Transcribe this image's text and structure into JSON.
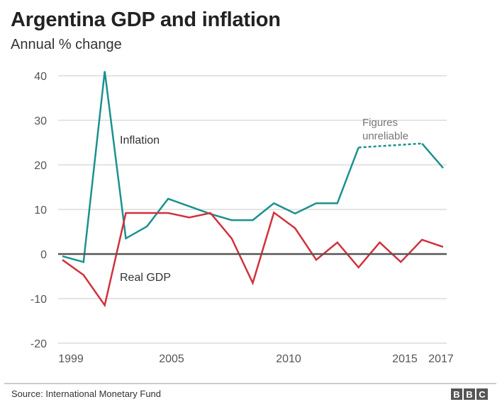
{
  "header": {
    "title": "Argentina GDP and inflation",
    "subtitle": "Annual % change"
  },
  "footer": {
    "source": "Source: International Monetary Fund",
    "logo_letters": [
      "B",
      "B",
      "C"
    ]
  },
  "chart_data": {
    "type": "line",
    "title": "Argentina GDP and inflation",
    "subtitle": "Annual % change",
    "xlabel": "",
    "ylabel": "",
    "x": [
      1999,
      2000,
      2001,
      2002,
      2003,
      2004,
      2005,
      2006,
      2007,
      2008,
      2009,
      2010,
      2011,
      2012,
      2013,
      2014,
      2015,
      2016,
      2017
    ],
    "x_tick_labels": [
      "1999",
      "2005",
      "2010",
      "2015",
      "2017"
    ],
    "x_ticks": [
      1999,
      2005,
      2010,
      2015,
      2017
    ],
    "ylim": [
      -20,
      40
    ],
    "y_ticks": [
      40,
      30,
      20,
      10,
      0,
      -10,
      -20
    ],
    "grid": true,
    "series": [
      {
        "name": "Inflation",
        "color": "#1b918f",
        "values": [
          -0.5,
          -1.8,
          41,
          3.5,
          6.2,
          12.4,
          10.7,
          9.0,
          7.6,
          7.6,
          11.4,
          9.1,
          11.4,
          11.4,
          23.9,
          24.2,
          24.5,
          24.8,
          19.3
        ],
        "dashed_from": 2013,
        "dashed_to": 2016
      },
      {
        "name": "Real GDP",
        "color": "#d1313c",
        "values": [
          -1.3,
          -4.7,
          -11.5,
          9.2,
          9.2,
          9.2,
          8.2,
          9.2,
          3.5,
          -6.5,
          9.3,
          5.8,
          -1.3,
          2.6,
          -3.0,
          2.6,
          -1.8,
          3.2,
          1.6
        ]
      }
    ],
    "annotations": [
      {
        "text": "Inflation",
        "series": "Inflation"
      },
      {
        "text": "Real GDP",
        "series": "Real GDP"
      },
      {
        "text": [
          "Figures",
          "unreliable"
        ],
        "note": "dashed segment 2013-2016 of inflation"
      }
    ]
  }
}
